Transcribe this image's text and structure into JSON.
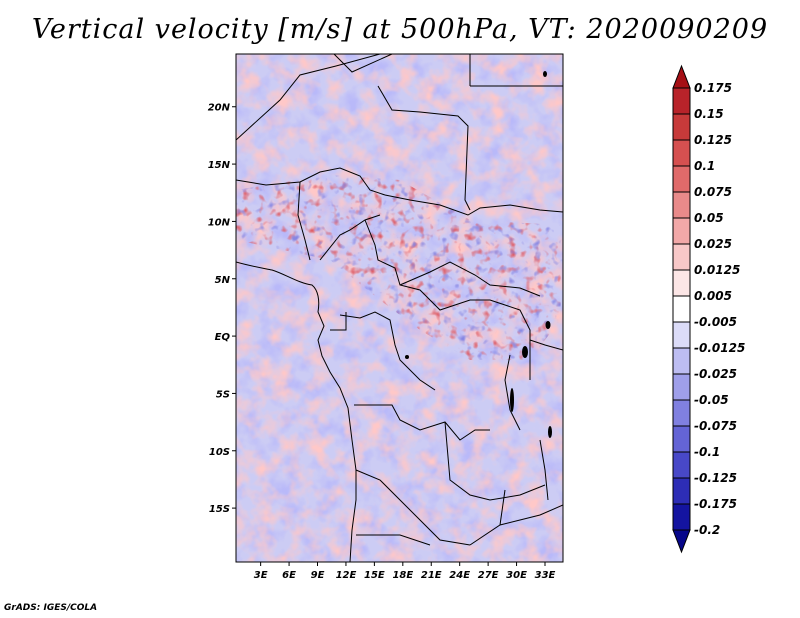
{
  "chart_data": {
    "type": "heatmap",
    "title": "Vertical velocity [m/s] at 500hPa, VT: 2020090209",
    "xlabel": "",
    "ylabel": "",
    "x_tick_labels": [
      "3E",
      "6E",
      "9E",
      "12E",
      "15E",
      "18E",
      "21E",
      "24E",
      "27E",
      "30E",
      "33E"
    ],
    "x_tick_values": [
      3,
      6,
      9,
      12,
      15,
      18,
      21,
      24,
      27,
      30,
      33
    ],
    "y_tick_labels": [
      "20N",
      "15N",
      "10N",
      "5N",
      "EQ",
      "5S",
      "10S",
      "15S"
    ],
    "y_tick_values": [
      20,
      15,
      10,
      5,
      0,
      -5,
      -10,
      -15
    ],
    "xlim": [
      0.4,
      34.9
    ],
    "ylim": [
      -19.7,
      24.6
    ],
    "colorbar": {
      "labels": [
        "0.175",
        "0.15",
        "0.125",
        "0.1",
        "0.075",
        "0.05",
        "0.025",
        "0.0125",
        "0.005",
        "-0.005",
        "-0.0125",
        "-0.025",
        "-0.05",
        "-0.075",
        "-0.1",
        "-0.125",
        "-0.175",
        "-0.2"
      ],
      "colors": [
        "#a50f15",
        "#b8232a",
        "#c73a3a",
        "#d65050",
        "#e06a6a",
        "#e98a8a",
        "#f2a8a8",
        "#f8c8c8",
        "#fce6e6",
        "#ffffff",
        "#dcdcf8",
        "#bdbdf2",
        "#9f9fea",
        "#8080e0",
        "#6464d6",
        "#4848c8",
        "#2d2db6",
        "#1414a0",
        "#07078a"
      ]
    }
  },
  "footer": {
    "credit": "GrADS: IGES/COLA"
  }
}
